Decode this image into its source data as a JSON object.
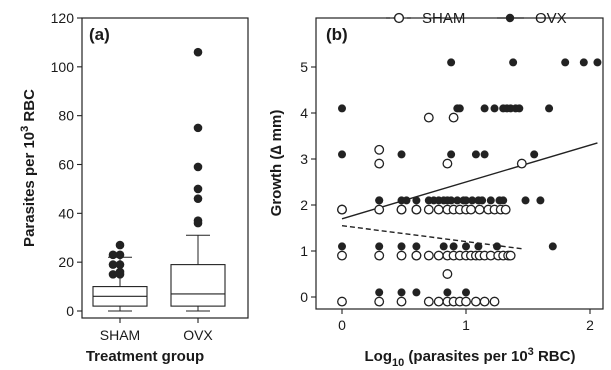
{
  "chart_data": [
    {
      "type": "box",
      "panel_label": "(a)",
      "xlabel": "Treatment group",
      "ylabel": "Parasites per 10",
      "ylabel_sup": "3",
      "ylabel_end": " RBC",
      "ylim": [
        0,
        120
      ],
      "yticks": [
        0,
        20,
        40,
        60,
        80,
        100,
        120
      ],
      "categories": [
        "SHAM",
        "OVX"
      ],
      "boxes": [
        {
          "name": "SHAM",
          "min": 0,
          "q1": 2,
          "median": 6,
          "q3": 10,
          "max": 22,
          "outliers": [
            27,
            23,
            23,
            19,
            19,
            16,
            15,
            15
          ]
        },
        {
          "name": "OVX",
          "min": 0,
          "q1": 2,
          "median": 7,
          "q3": 19,
          "max": 31,
          "outliers": [
            106,
            75,
            59,
            50,
            46,
            37,
            36
          ]
        }
      ]
    },
    {
      "type": "scatter",
      "panel_label": "(b)",
      "xlabel": "Log",
      "xlabel_sub": "10",
      "xlabel_mid": " (parasites per 10",
      "xlabel_sup": "3",
      "xlabel_end": " RBC)",
      "ylabel": "Growth (∆ mm)",
      "xlim": [
        -0.25,
        2.15
      ],
      "ylim": [
        -0.6,
        5.6
      ],
      "xticks": [
        0,
        1,
        2
      ],
      "yticks": [
        0,
        1,
        2,
        3,
        4,
        5
      ],
      "legend": {
        "placement": "top",
        "entries": [
          "SHAM",
          "OVX"
        ]
      },
      "series": [
        {
          "name": "SHAM",
          "marker": "open-circle",
          "points": [
            [
              0,
              1.9
            ],
            [
              0,
              1.9
            ],
            [
              0,
              0.9
            ],
            [
              0,
              -0.1
            ],
            [
              0.3,
              3.2
            ],
            [
              0.3,
              2.9
            ],
            [
              0.3,
              1.9
            ],
            [
              0.3,
              0.9
            ],
            [
              0.3,
              -0.1
            ],
            [
              0.48,
              1.9
            ],
            [
              0.48,
              1.9
            ],
            [
              0.48,
              0.9
            ],
            [
              0.48,
              -0.1
            ],
            [
              0.6,
              1.9
            ],
            [
              0.6,
              1.9
            ],
            [
              0.6,
              0.9
            ],
            [
              0.6,
              0.9
            ],
            [
              0.7,
              3.9
            ],
            [
              0.7,
              1.9
            ],
            [
              0.7,
              0.9
            ],
            [
              0.7,
              -0.1
            ],
            [
              0.78,
              1.9
            ],
            [
              0.78,
              0.9
            ],
            [
              0.78,
              -0.1
            ],
            [
              0.85,
              2.9
            ],
            [
              0.85,
              1.9
            ],
            [
              0.85,
              0.9
            ],
            [
              0.85,
              0.5
            ],
            [
              0.85,
              -0.1
            ],
            [
              0.9,
              3.9
            ],
            [
              0.9,
              1.9
            ],
            [
              0.9,
              0.9
            ],
            [
              0.9,
              -0.1
            ],
            [
              0.95,
              1.9
            ],
            [
              0.95,
              0.9
            ],
            [
              0.95,
              -0.1
            ],
            [
              1.0,
              1.9
            ],
            [
              1.0,
              0.9
            ],
            [
              1.0,
              -0.1
            ],
            [
              1.04,
              1.9
            ],
            [
              1.04,
              0.9
            ],
            [
              1.08,
              0.9
            ],
            [
              1.08,
              -0.1
            ],
            [
              1.11,
              1.9
            ],
            [
              1.11,
              0.9
            ],
            [
              1.15,
              0.9
            ],
            [
              1.15,
              -0.1
            ],
            [
              1.18,
              1.9
            ],
            [
              1.2,
              0.9
            ],
            [
              1.23,
              1.9
            ],
            [
              1.23,
              -0.1
            ],
            [
              1.26,
              0.9
            ],
            [
              1.28,
              1.9
            ],
            [
              1.3,
              0.9
            ],
            [
              1.32,
              1.9
            ],
            [
              1.34,
              0.9
            ],
            [
              1.36,
              0.9
            ],
            [
              1.45,
              2.9
            ]
          ],
          "trend": {
            "style": "dashed",
            "x": [
              0,
              1.45
            ],
            "y": [
              1.55,
              1.05
            ]
          }
        },
        {
          "name": "OVX",
          "marker": "filled-circle",
          "points": [
            [
              0,
              4.1
            ],
            [
              0,
              3.1
            ],
            [
              0,
              1.1
            ],
            [
              0.3,
              2.1
            ],
            [
              0.3,
              2.1
            ],
            [
              0.3,
              1.1
            ],
            [
              0.3,
              0.1
            ],
            [
              0.48,
              3.1
            ],
            [
              0.48,
              2.1
            ],
            [
              0.48,
              1.1
            ],
            [
              0.48,
              0.1
            ],
            [
              0.52,
              2.1
            ],
            [
              0.6,
              2.1
            ],
            [
              0.6,
              1.1
            ],
            [
              0.6,
              0.1
            ],
            [
              0.7,
              2.1
            ],
            [
              0.74,
              2.1
            ],
            [
              0.78,
              2.1
            ],
            [
              0.82,
              2.1
            ],
            [
              0.82,
              1.1
            ],
            [
              0.85,
              2.1
            ],
            [
              0.85,
              0.1
            ],
            [
              0.88,
              5.1
            ],
            [
              0.88,
              3.1
            ],
            [
              0.88,
              2.1
            ],
            [
              0.9,
              1.1
            ],
            [
              0.93,
              4.1
            ],
            [
              0.93,
              2.1
            ],
            [
              0.95,
              4.1
            ],
            [
              0.98,
              2.1
            ],
            [
              1.0,
              2.1
            ],
            [
              1.0,
              1.1
            ],
            [
              1.0,
              0.1
            ],
            [
              1.05,
              2.1
            ],
            [
              1.08,
              3.1
            ],
            [
              1.1,
              2.1
            ],
            [
              1.1,
              1.1
            ],
            [
              1.13,
              2.1
            ],
            [
              1.15,
              4.1
            ],
            [
              1.15,
              3.1
            ],
            [
              1.2,
              2.1
            ],
            [
              1.23,
              4.1
            ],
            [
              1.25,
              1.1
            ],
            [
              1.27,
              2.1
            ],
            [
              1.3,
              4.1
            ],
            [
              1.3,
              2.1
            ],
            [
              1.33,
              4.1
            ],
            [
              1.36,
              4.1
            ],
            [
              1.38,
              5.1
            ],
            [
              1.4,
              4.1
            ],
            [
              1.43,
              4.1
            ],
            [
              1.48,
              2.1
            ],
            [
              1.55,
              3.1
            ],
            [
              1.6,
              2.1
            ],
            [
              1.67,
              4.1
            ],
            [
              1.7,
              1.1
            ],
            [
              1.8,
              5.1
            ],
            [
              1.95,
              5.1
            ],
            [
              2.06,
              5.1
            ]
          ],
          "trend": {
            "style": "solid",
            "x": [
              0,
              2.06
            ],
            "y": [
              1.7,
              3.35
            ]
          }
        }
      ]
    }
  ]
}
